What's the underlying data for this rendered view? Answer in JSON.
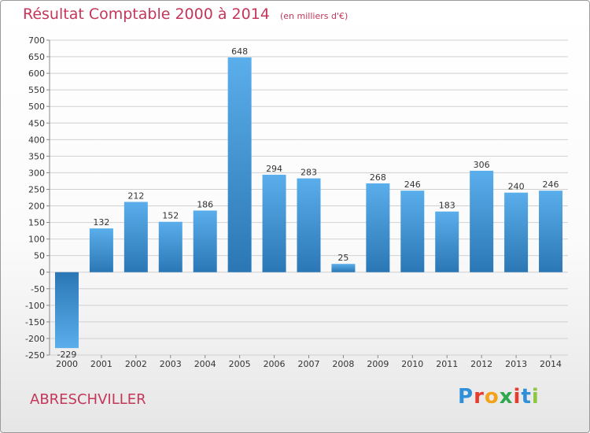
{
  "chart_data": {
    "type": "bar",
    "title": "Résultat Comptable 2000 à 2014",
    "subtitle": "(en milliers d'€)",
    "categories": [
      "2000",
      "2001",
      "2002",
      "2003",
      "2004",
      "2005",
      "2006",
      "2007",
      "2008",
      "2009",
      "2010",
      "2011",
      "2012",
      "2013",
      "2014"
    ],
    "values": [
      -229,
      132,
      212,
      152,
      186,
      648,
      294,
      283,
      25,
      268,
      246,
      183,
      306,
      240,
      246
    ],
    "data_labels": [
      "-229",
      "132",
      "212",
      "152",
      "186",
      "648",
      "294",
      "283",
      "25",
      "268",
      "246",
      "183",
      "306",
      "240",
      "246"
    ],
    "y_ticks": [
      700,
      650,
      600,
      550,
      500,
      450,
      400,
      350,
      300,
      250,
      200,
      150,
      100,
      50,
      0,
      -50,
      -100,
      -150,
      -200,
      -250
    ],
    "ylim": [
      -250,
      700
    ],
    "grid": true,
    "xlabel": "",
    "ylabel": ""
  },
  "footer": {
    "commune": "ABRESCHVILLER",
    "logo_letters": [
      "P",
      "r",
      "o",
      "x",
      "i",
      "t",
      "i"
    ],
    "logo_colors": [
      "#2f8fd8",
      "#e63c2f",
      "#f3a21b",
      "#2fa84f",
      "#e63c2f",
      "#2f8fd8",
      "#8dc63f"
    ]
  },
  "colors": {
    "title": "#c4365a",
    "bar_light": "#5aaeeb",
    "bar_dark": "#2b77b5",
    "grid": "#d0d0d0",
    "text": "#333333"
  }
}
